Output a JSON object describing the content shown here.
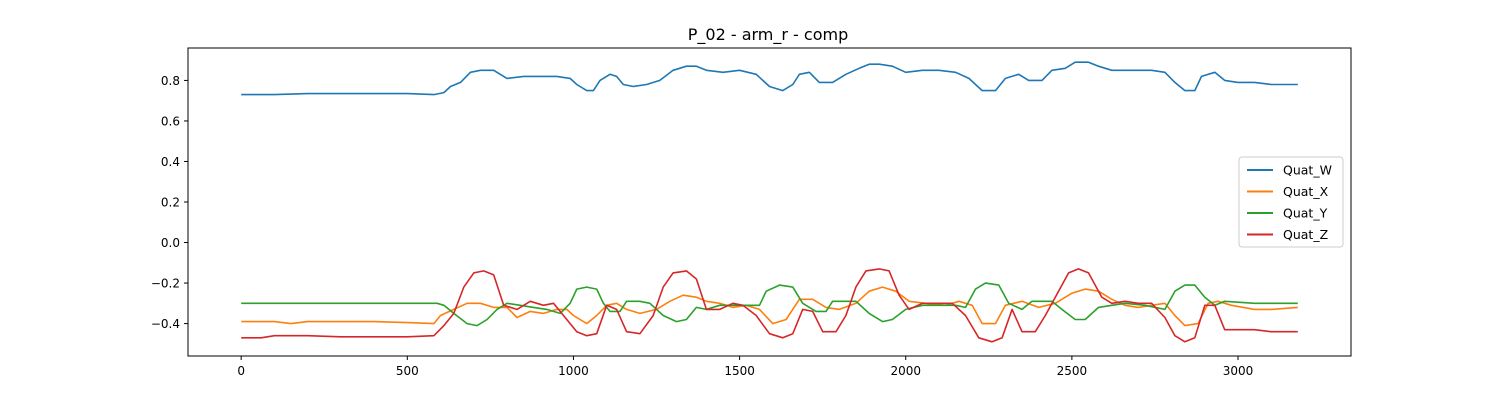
{
  "chart_data": {
    "type": "line",
    "title": "P_02 - arm_r - comp",
    "xlabel": "",
    "ylabel": "",
    "xlim": [
      -160,
      3340
    ],
    "ylim": [
      -0.56,
      0.96
    ],
    "xticks": [
      0,
      500,
      1000,
      1500,
      2000,
      2500,
      3000
    ],
    "yticks": [
      -0.4,
      -0.2,
      0.0,
      0.2,
      0.4,
      0.6,
      0.8
    ],
    "ytick_labels": [
      "−0.4",
      "−0.2",
      "0.0",
      "0.2",
      "0.4",
      "0.6",
      "0.8"
    ],
    "grid": false,
    "legend_position": "center-right",
    "series": [
      {
        "name": "Quat_W",
        "color": "#1f77b4",
        "points": [
          [
            0,
            0.73
          ],
          [
            100,
            0.73
          ],
          [
            200,
            0.735
          ],
          [
            300,
            0.735
          ],
          [
            400,
            0.735
          ],
          [
            500,
            0.735
          ],
          [
            580,
            0.73
          ],
          [
            610,
            0.74
          ],
          [
            630,
            0.77
          ],
          [
            660,
            0.79
          ],
          [
            690,
            0.84
          ],
          [
            720,
            0.85
          ],
          [
            760,
            0.85
          ],
          [
            800,
            0.81
          ],
          [
            850,
            0.82
          ],
          [
            900,
            0.82
          ],
          [
            950,
            0.82
          ],
          [
            990,
            0.81
          ],
          [
            1010,
            0.78
          ],
          [
            1040,
            0.75
          ],
          [
            1060,
            0.75
          ],
          [
            1080,
            0.8
          ],
          [
            1110,
            0.83
          ],
          [
            1130,
            0.82
          ],
          [
            1150,
            0.78
          ],
          [
            1180,
            0.77
          ],
          [
            1220,
            0.78
          ],
          [
            1260,
            0.8
          ],
          [
            1300,
            0.85
          ],
          [
            1340,
            0.87
          ],
          [
            1370,
            0.87
          ],
          [
            1400,
            0.85
          ],
          [
            1450,
            0.84
          ],
          [
            1500,
            0.85
          ],
          [
            1550,
            0.83
          ],
          [
            1590,
            0.77
          ],
          [
            1630,
            0.75
          ],
          [
            1660,
            0.78
          ],
          [
            1680,
            0.83
          ],
          [
            1710,
            0.84
          ],
          [
            1740,
            0.79
          ],
          [
            1780,
            0.79
          ],
          [
            1820,
            0.83
          ],
          [
            1860,
            0.86
          ],
          [
            1890,
            0.88
          ],
          [
            1920,
            0.88
          ],
          [
            1960,
            0.87
          ],
          [
            2000,
            0.84
          ],
          [
            2050,
            0.85
          ],
          [
            2100,
            0.85
          ],
          [
            2150,
            0.84
          ],
          [
            2190,
            0.81
          ],
          [
            2230,
            0.75
          ],
          [
            2270,
            0.75
          ],
          [
            2300,
            0.81
          ],
          [
            2340,
            0.83
          ],
          [
            2370,
            0.8
          ],
          [
            2410,
            0.8
          ],
          [
            2440,
            0.85
          ],
          [
            2480,
            0.86
          ],
          [
            2510,
            0.89
          ],
          [
            2550,
            0.89
          ],
          [
            2580,
            0.87
          ],
          [
            2620,
            0.85
          ],
          [
            2660,
            0.85
          ],
          [
            2700,
            0.85
          ],
          [
            2740,
            0.85
          ],
          [
            2780,
            0.84
          ],
          [
            2810,
            0.79
          ],
          [
            2840,
            0.75
          ],
          [
            2870,
            0.75
          ],
          [
            2890,
            0.82
          ],
          [
            2930,
            0.84
          ],
          [
            2960,
            0.8
          ],
          [
            3000,
            0.79
          ],
          [
            3050,
            0.79
          ],
          [
            3100,
            0.78
          ],
          [
            3180,
            0.78
          ]
        ]
      },
      {
        "name": "Quat_X",
        "color": "#ff7f0e",
        "points": [
          [
            0,
            -0.39
          ],
          [
            100,
            -0.39
          ],
          [
            150,
            -0.4
          ],
          [
            200,
            -0.39
          ],
          [
            300,
            -0.39
          ],
          [
            400,
            -0.39
          ],
          [
            500,
            -0.395
          ],
          [
            580,
            -0.4
          ],
          [
            600,
            -0.36
          ],
          [
            640,
            -0.33
          ],
          [
            680,
            -0.3
          ],
          [
            720,
            -0.3
          ],
          [
            760,
            -0.32
          ],
          [
            800,
            -0.32
          ],
          [
            830,
            -0.37
          ],
          [
            870,
            -0.34
          ],
          [
            910,
            -0.35
          ],
          [
            950,
            -0.33
          ],
          [
            980,
            -0.33
          ],
          [
            1000,
            -0.36
          ],
          [
            1040,
            -0.4
          ],
          [
            1070,
            -0.36
          ],
          [
            1100,
            -0.31
          ],
          [
            1130,
            -0.3
          ],
          [
            1160,
            -0.33
          ],
          [
            1200,
            -0.35
          ],
          [
            1250,
            -0.33
          ],
          [
            1290,
            -0.29
          ],
          [
            1330,
            -0.26
          ],
          [
            1370,
            -0.27
          ],
          [
            1400,
            -0.29
          ],
          [
            1440,
            -0.3
          ],
          [
            1480,
            -0.32
          ],
          [
            1520,
            -0.31
          ],
          [
            1560,
            -0.33
          ],
          [
            1600,
            -0.4
          ],
          [
            1640,
            -0.38
          ],
          [
            1680,
            -0.28
          ],
          [
            1720,
            -0.28
          ],
          [
            1760,
            -0.32
          ],
          [
            1800,
            -0.33
          ],
          [
            1850,
            -0.3
          ],
          [
            1890,
            -0.24
          ],
          [
            1930,
            -0.22
          ],
          [
            1970,
            -0.24
          ],
          [
            2010,
            -0.29
          ],
          [
            2060,
            -0.3
          ],
          [
            2120,
            -0.31
          ],
          [
            2160,
            -0.29
          ],
          [
            2200,
            -0.31
          ],
          [
            2230,
            -0.4
          ],
          [
            2270,
            -0.4
          ],
          [
            2300,
            -0.31
          ],
          [
            2350,
            -0.29
          ],
          [
            2400,
            -0.32
          ],
          [
            2450,
            -0.3
          ],
          [
            2500,
            -0.25
          ],
          [
            2540,
            -0.23
          ],
          [
            2580,
            -0.24
          ],
          [
            2620,
            -0.28
          ],
          [
            2660,
            -0.31
          ],
          [
            2700,
            -0.32
          ],
          [
            2740,
            -0.31
          ],
          [
            2780,
            -0.3
          ],
          [
            2810,
            -0.36
          ],
          [
            2840,
            -0.41
          ],
          [
            2880,
            -0.4
          ],
          [
            2910,
            -0.3
          ],
          [
            2940,
            -0.29
          ],
          [
            2980,
            -0.31
          ],
          [
            3050,
            -0.33
          ],
          [
            3100,
            -0.33
          ],
          [
            3180,
            -0.32
          ]
        ]
      },
      {
        "name": "Quat_Y",
        "color": "#2ca02c",
        "points": [
          [
            0,
            -0.3
          ],
          [
            200,
            -0.3
          ],
          [
            400,
            -0.3
          ],
          [
            590,
            -0.3
          ],
          [
            610,
            -0.31
          ],
          [
            640,
            -0.35
          ],
          [
            680,
            -0.4
          ],
          [
            710,
            -0.41
          ],
          [
            740,
            -0.38
          ],
          [
            770,
            -0.33
          ],
          [
            800,
            -0.3
          ],
          [
            840,
            -0.31
          ],
          [
            880,
            -0.32
          ],
          [
            920,
            -0.33
          ],
          [
            960,
            -0.35
          ],
          [
            990,
            -0.3
          ],
          [
            1010,
            -0.23
          ],
          [
            1040,
            -0.22
          ],
          [
            1070,
            -0.23
          ],
          [
            1090,
            -0.3
          ],
          [
            1110,
            -0.34
          ],
          [
            1140,
            -0.34
          ],
          [
            1160,
            -0.29
          ],
          [
            1200,
            -0.29
          ],
          [
            1230,
            -0.3
          ],
          [
            1270,
            -0.36
          ],
          [
            1310,
            -0.39
          ],
          [
            1340,
            -0.38
          ],
          [
            1370,
            -0.32
          ],
          [
            1400,
            -0.33
          ],
          [
            1440,
            -0.31
          ],
          [
            1480,
            -0.31
          ],
          [
            1520,
            -0.31
          ],
          [
            1560,
            -0.31
          ],
          [
            1580,
            -0.24
          ],
          [
            1620,
            -0.21
          ],
          [
            1660,
            -0.22
          ],
          [
            1690,
            -0.3
          ],
          [
            1730,
            -0.34
          ],
          [
            1760,
            -0.34
          ],
          [
            1780,
            -0.29
          ],
          [
            1850,
            -0.29
          ],
          [
            1890,
            -0.35
          ],
          [
            1930,
            -0.39
          ],
          [
            1960,
            -0.38
          ],
          [
            2000,
            -0.33
          ],
          [
            2050,
            -0.31
          ],
          [
            2100,
            -0.31
          ],
          [
            2150,
            -0.31
          ],
          [
            2180,
            -0.32
          ],
          [
            2210,
            -0.23
          ],
          [
            2240,
            -0.2
          ],
          [
            2280,
            -0.21
          ],
          [
            2310,
            -0.3
          ],
          [
            2350,
            -0.33
          ],
          [
            2380,
            -0.29
          ],
          [
            2440,
            -0.29
          ],
          [
            2470,
            -0.33
          ],
          [
            2510,
            -0.38
          ],
          [
            2540,
            -0.38
          ],
          [
            2580,
            -0.32
          ],
          [
            2620,
            -0.31
          ],
          [
            2660,
            -0.3
          ],
          [
            2720,
            -0.31
          ],
          [
            2780,
            -0.33
          ],
          [
            2810,
            -0.24
          ],
          [
            2840,
            -0.21
          ],
          [
            2870,
            -0.21
          ],
          [
            2900,
            -0.27
          ],
          [
            2930,
            -0.31
          ],
          [
            2960,
            -0.29
          ],
          [
            3050,
            -0.3
          ],
          [
            3100,
            -0.3
          ],
          [
            3180,
            -0.3
          ]
        ]
      },
      {
        "name": "Quat_Z",
        "color": "#d62728",
        "points": [
          [
            0,
            -0.47
          ],
          [
            60,
            -0.47
          ],
          [
            100,
            -0.46
          ],
          [
            200,
            -0.46
          ],
          [
            300,
            -0.465
          ],
          [
            400,
            -0.465
          ],
          [
            500,
            -0.465
          ],
          [
            580,
            -0.46
          ],
          [
            610,
            -0.41
          ],
          [
            640,
            -0.35
          ],
          [
            670,
            -0.22
          ],
          [
            700,
            -0.15
          ],
          [
            730,
            -0.14
          ],
          [
            760,
            -0.16
          ],
          [
            790,
            -0.31
          ],
          [
            830,
            -0.33
          ],
          [
            870,
            -0.29
          ],
          [
            910,
            -0.31
          ],
          [
            940,
            -0.3
          ],
          [
            970,
            -0.36
          ],
          [
            1010,
            -0.44
          ],
          [
            1040,
            -0.46
          ],
          [
            1070,
            -0.45
          ],
          [
            1100,
            -0.31
          ],
          [
            1130,
            -0.33
          ],
          [
            1160,
            -0.44
          ],
          [
            1200,
            -0.45
          ],
          [
            1240,
            -0.36
          ],
          [
            1270,
            -0.22
          ],
          [
            1300,
            -0.15
          ],
          [
            1340,
            -0.14
          ],
          [
            1370,
            -0.18
          ],
          [
            1400,
            -0.33
          ],
          [
            1440,
            -0.33
          ],
          [
            1480,
            -0.3
          ],
          [
            1510,
            -0.31
          ],
          [
            1550,
            -0.36
          ],
          [
            1590,
            -0.45
          ],
          [
            1630,
            -0.47
          ],
          [
            1660,
            -0.45
          ],
          [
            1690,
            -0.33
          ],
          [
            1720,
            -0.34
          ],
          [
            1750,
            -0.44
          ],
          [
            1790,
            -0.44
          ],
          [
            1820,
            -0.36
          ],
          [
            1850,
            -0.22
          ],
          [
            1880,
            -0.14
          ],
          [
            1920,
            -0.13
          ],
          [
            1950,
            -0.14
          ],
          [
            1980,
            -0.26
          ],
          [
            2010,
            -0.33
          ],
          [
            2050,
            -0.3
          ],
          [
            2100,
            -0.3
          ],
          [
            2140,
            -0.3
          ],
          [
            2180,
            -0.36
          ],
          [
            2220,
            -0.47
          ],
          [
            2260,
            -0.49
          ],
          [
            2290,
            -0.47
          ],
          [
            2320,
            -0.33
          ],
          [
            2350,
            -0.44
          ],
          [
            2390,
            -0.44
          ],
          [
            2420,
            -0.36
          ],
          [
            2450,
            -0.27
          ],
          [
            2490,
            -0.15
          ],
          [
            2520,
            -0.13
          ],
          [
            2550,
            -0.15
          ],
          [
            2590,
            -0.27
          ],
          [
            2620,
            -0.3
          ],
          [
            2660,
            -0.29
          ],
          [
            2700,
            -0.3
          ],
          [
            2740,
            -0.3
          ],
          [
            2780,
            -0.37
          ],
          [
            2810,
            -0.46
          ],
          [
            2840,
            -0.49
          ],
          [
            2870,
            -0.47
          ],
          [
            2900,
            -0.31
          ],
          [
            2930,
            -0.31
          ],
          [
            2960,
            -0.43
          ],
          [
            3000,
            -0.43
          ],
          [
            3050,
            -0.43
          ],
          [
            3100,
            -0.44
          ],
          [
            3180,
            -0.44
          ]
        ]
      }
    ]
  }
}
